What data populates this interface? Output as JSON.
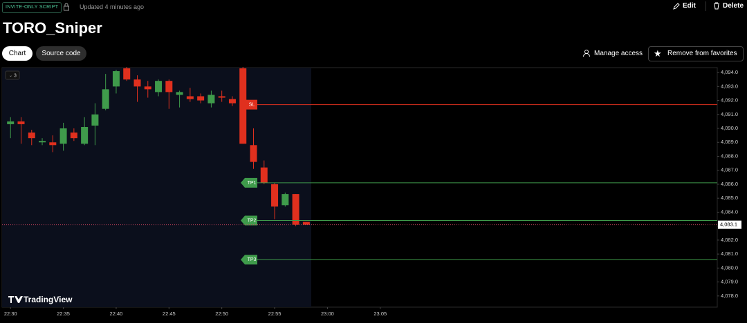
{
  "header": {
    "badge": "INVITE-ONLY SCRIPT",
    "updated": "Updated 4 minutes ago",
    "edit": "Edit",
    "delete": "Delete",
    "title": "TORO_Sniper"
  },
  "tabs": [
    "Chart",
    "Source code"
  ],
  "actions": {
    "manage": "Manage access",
    "favorites": "Remove from favorites"
  },
  "interval": "3",
  "logo": "TradingView",
  "chart_data": {
    "type": "candlestick",
    "x": [
      0,
      1,
      2,
      3,
      4,
      5,
      6,
      7,
      8,
      9,
      10,
      11,
      12,
      13,
      14,
      15,
      16,
      17,
      18,
      19,
      20,
      21,
      22,
      23,
      24,
      25,
      26,
      27,
      28
    ],
    "open": [
      4090.3,
      4090.5,
      4089.7,
      4089.0,
      4089.0,
      4088.9,
      4089.7,
      4088.9,
      4090.2,
      4091.4,
      4093.0,
      4094.3,
      4093.5,
      4093.0,
      4092.6,
      4093.4,
      4092.4,
      4092.3,
      4092.3,
      4091.8,
      4092.3,
      4092.1,
      4094.3,
      4088.8,
      4087.2,
      4086.0,
      4084.5,
      4085.3,
      4083.3
    ],
    "high": [
      4090.8,
      4090.8,
      4089.9,
      4089.3,
      4089.5,
      4090.4,
      4090.0,
      4090.8,
      4091.8,
      4093.9,
      4094.2,
      4094.4,
      4093.8,
      4093.4,
      4093.5,
      4093.5,
      4092.7,
      4092.9,
      4092.5,
      4092.7,
      4092.7,
      4092.3,
      4094.4,
      4090.0,
      4087.7,
      4086.1,
      4085.4,
      4085.3,
      4083.3
    ],
    "low": [
      4089.3,
      4088.9,
      4088.8,
      4088.8,
      4088.3,
      4088.4,
      4089.1,
      4088.8,
      4088.8,
      4091.3,
      4092.5,
      4093.4,
      4091.9,
      4092.2,
      4092.3,
      4091.4,
      4091.5,
      4091.9,
      4091.8,
      4091.5,
      4091.9,
      4091.6,
      4088.9,
      4087.1,
      4086.0,
      4083.5,
      4084.4,
      4083.0,
      4083.1
    ],
    "close": [
      4090.5,
      4090.3,
      4089.3,
      4089.1,
      4088.8,
      4090.0,
      4089.3,
      4090.1,
      4091.0,
      4092.8,
      4094.1,
      4093.5,
      4093.0,
      4092.8,
      4093.4,
      4092.6,
      4092.6,
      4092.1,
      4092.0,
      4092.4,
      4092.2,
      4091.8,
      4088.9,
      4087.6,
      4086.1,
      4084.4,
      4085.3,
      4083.1,
      4083.1
    ],
    "up_color": "#3f9b4b",
    "down_color": "#e0301e",
    "xlim": [
      -0.8,
      66.9
    ],
    "xticks": [
      {
        "value": 0,
        "label": "22:30"
      },
      {
        "value": 5,
        "label": "22:35"
      },
      {
        "value": 10,
        "label": "22:40"
      },
      {
        "value": 15,
        "label": "22:45"
      },
      {
        "value": 20,
        "label": "22:50"
      },
      {
        "value": 25,
        "label": "22:55"
      },
      {
        "value": 30,
        "label": "23:00"
      },
      {
        "value": 35,
        "label": "23:05"
      }
    ],
    "ylim": [
      4077.2,
      4094.35
    ],
    "yticks": [
      {
        "value": 4094,
        "label": "4,094.0"
      },
      {
        "value": 4093,
        "label": "4,093.0"
      },
      {
        "value": 4092,
        "label": "4,092.0"
      },
      {
        "value": 4091,
        "label": "4,091.0"
      },
      {
        "value": 4090,
        "label": "4,090.0"
      },
      {
        "value": 4089,
        "label": "4,089.0"
      },
      {
        "value": 4088,
        "label": "4,088.0"
      },
      {
        "value": 4087,
        "label": "4,087.0"
      },
      {
        "value": 4086,
        "label": "4,086.0"
      },
      {
        "value": 4085,
        "label": "4,085.0"
      },
      {
        "value": 4084,
        "label": "4,084.0"
      },
      {
        "value": 4083,
        "label": "4,083.0"
      },
      {
        "value": 4082,
        "label": "4,082.0"
      },
      {
        "value": 4081,
        "label": "4,081.0"
      },
      {
        "value": 4080,
        "label": "4,080.0"
      },
      {
        "value": 4079,
        "label": "4,079.0"
      },
      {
        "value": 4078,
        "label": "4,078.0"
      }
    ],
    "levels": [
      {
        "label": "SL",
        "value": 4091.7,
        "color": "#e0301e"
      },
      {
        "label": "TP1",
        "value": 4086.1,
        "color": "#3f9b4b"
      },
      {
        "label": "TP2",
        "value": 4083.4,
        "color": "#3f9b4b"
      },
      {
        "label": "TP3",
        "value": 4080.6,
        "color": "#3f9b4b"
      }
    ],
    "last_price": {
      "value": 4083.1,
      "label": "4,083.1"
    }
  }
}
